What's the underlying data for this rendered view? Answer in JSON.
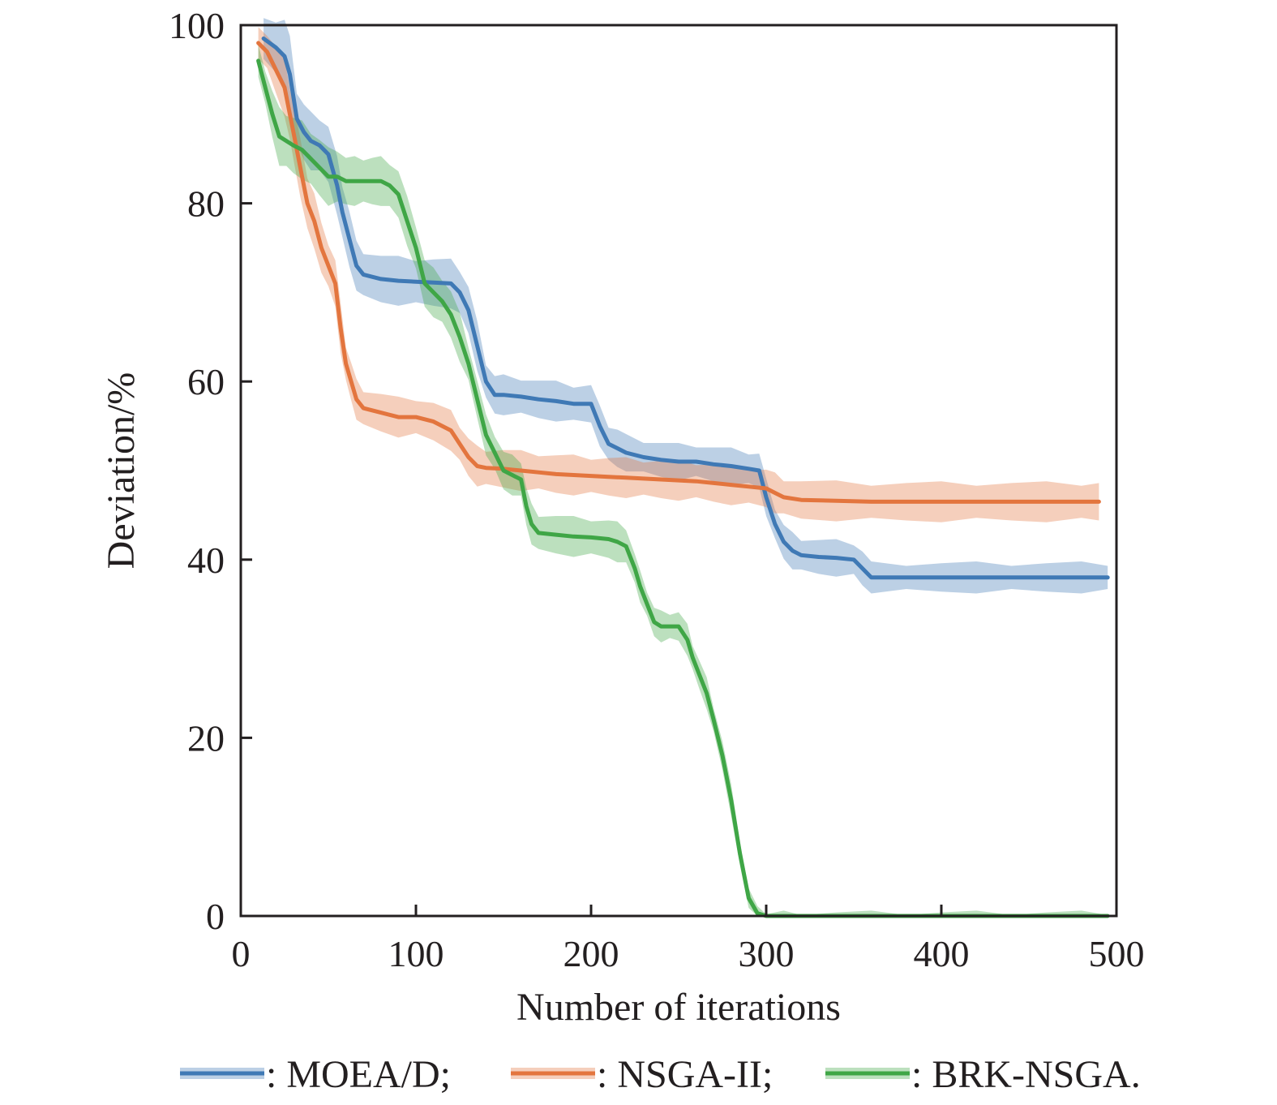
{
  "chart_data": {
    "type": "line",
    "xlabel": "Number of iterations",
    "ylabel": "Deviation/%",
    "xlim": [
      0,
      500
    ],
    "ylim": [
      0,
      100
    ],
    "xticks": [
      0,
      100,
      200,
      300,
      400,
      500
    ],
    "yticks": [
      0,
      20,
      40,
      60,
      80,
      100
    ],
    "x_tick_labels": [
      "0",
      "100",
      "200",
      "300",
      "400",
      "500"
    ],
    "y_tick_labels": [
      "0",
      "20",
      "40",
      "60",
      "80",
      "100"
    ],
    "grid": false,
    "legend_position": "bottom",
    "shaded_band": true,
    "series": [
      {
        "name": ": MOEA/D;",
        "color": "#3f79b5",
        "x": [
          13,
          20,
          25,
          28,
          32,
          36,
          40,
          45,
          50,
          55,
          58,
          62,
          66,
          70,
          80,
          90,
          100,
          110,
          120,
          125,
          130,
          135,
          140,
          145,
          150,
          160,
          170,
          180,
          190,
          200,
          205,
          210,
          215,
          220,
          230,
          240,
          250,
          260,
          270,
          280,
          290,
          296,
          300,
          305,
          310,
          315,
          320,
          330,
          340,
          350,
          355,
          360,
          380,
          400,
          420,
          440,
          460,
          480,
          495
        ],
        "y": [
          98.5,
          97.5,
          96.5,
          94.5,
          89.5,
          88,
          87,
          86.5,
          85.5,
          82,
          79,
          76,
          73,
          72,
          71.5,
          71.3,
          71.2,
          71.1,
          71,
          70,
          68,
          64,
          60,
          58.5,
          58.5,
          58.3,
          58,
          57.8,
          57.5,
          57.5,
          55,
          53,
          52.5,
          52,
          51.5,
          51.2,
          51,
          51,
          50.7,
          50.5,
          50.2,
          50,
          47,
          44,
          42,
          41,
          40.5,
          40.3,
          40.2,
          40,
          39,
          38,
          38,
          38,
          38,
          38,
          38,
          38,
          38
        ],
        "band_halfwidth": [
          2,
          3,
          4,
          4,
          3,
          3,
          3,
          3,
          3,
          3,
          3,
          3,
          2.5,
          2.5,
          2.5,
          2.5,
          2.5,
          2.5,
          2.5,
          2.5,
          2.5,
          2.5,
          2,
          2,
          2,
          2,
          2,
          2,
          2,
          2,
          2,
          2,
          2,
          1.8,
          1.8,
          1.8,
          1.8,
          1.8,
          1.8,
          1.8,
          1.8,
          1.8,
          1.8,
          1.8,
          1.8,
          1.8,
          1.8,
          1.8,
          1.8,
          1.8,
          1.8,
          1.5,
          1.5,
          1.5,
          1.5,
          1.5,
          1.5,
          1.5,
          1.5
        ]
      },
      {
        "name": ": NSGA-II;",
        "color": "#e3753e",
        "x": [
          10,
          15,
          20,
          25,
          28,
          31,
          34,
          38,
          42,
          46,
          50,
          54,
          57,
          60,
          63,
          66,
          70,
          80,
          90,
          100,
          110,
          120,
          125,
          130,
          135,
          140,
          150,
          160,
          170,
          180,
          190,
          200,
          210,
          220,
          230,
          240,
          250,
          260,
          270,
          280,
          290,
          300,
          305,
          310,
          320,
          340,
          360,
          380,
          400,
          420,
          440,
          460,
          480,
          490
        ],
        "y": [
          98,
          97,
          95,
          93,
          90,
          87,
          84,
          80,
          78,
          75,
          73,
          71,
          66,
          62,
          60,
          58,
          57,
          56.5,
          56,
          56,
          55.5,
          54.5,
          53,
          51.5,
          50.5,
          50.3,
          50.2,
          50,
          49.8,
          49.6,
          49.5,
          49.4,
          49.3,
          49.2,
          49.1,
          49,
          48.9,
          48.8,
          48.6,
          48.4,
          48.2,
          48,
          47.5,
          47,
          46.7,
          46.6,
          46.5,
          46.5,
          46.5,
          46.5,
          46.5,
          46.5,
          46.5,
          46.5
        ],
        "band_halfwidth": [
          1.5,
          2,
          2.5,
          3,
          3,
          3,
          3,
          3,
          3,
          2.5,
          2.5,
          2.5,
          2.5,
          2,
          2,
          2,
          2,
          2,
          2,
          2,
          2,
          2,
          2,
          2,
          2,
          2,
          2,
          2,
          2,
          2,
          2,
          2,
          2,
          2,
          2,
          2,
          2,
          2,
          2,
          2,
          2,
          2,
          2,
          2,
          2,
          2,
          2,
          2,
          2,
          2,
          2,
          2,
          2,
          2
        ]
      },
      {
        "name": ": BRK-NSGA.",
        "color": "#3fa646",
        "x": [
          10,
          14,
          18,
          22,
          26,
          30,
          35,
          40,
          45,
          50,
          55,
          60,
          65,
          70,
          75,
          80,
          85,
          90,
          95,
          100,
          105,
          110,
          115,
          120,
          125,
          130,
          135,
          140,
          145,
          150,
          155,
          160,
          163,
          166,
          170,
          180,
          190,
          200,
          210,
          215,
          220,
          225,
          228,
          232,
          236,
          240,
          245,
          250,
          255,
          258,
          262,
          266,
          270,
          275,
          280,
          285,
          290,
          295,
          300,
          305,
          310,
          320,
          340,
          360,
          380,
          400,
          420,
          440,
          460,
          480,
          495
        ],
        "y": [
          96,
          93,
          90,
          87.5,
          87,
          86.5,
          86,
          85,
          84,
          83,
          83,
          82.5,
          82.5,
          82.5,
          82.5,
          82.5,
          82,
          81,
          78,
          75,
          71,
          70,
          69,
          67.5,
          65,
          62,
          58,
          54,
          52,
          50,
          49.5,
          49,
          46,
          44,
          43,
          42.8,
          42.6,
          42.5,
          42.3,
          42,
          41.5,
          39,
          37,
          35,
          33,
          32.5,
          32.5,
          32.5,
          31,
          29,
          27,
          25,
          22,
          18,
          13,
          7,
          2,
          0.3,
          0,
          0,
          0,
          0,
          0,
          0,
          0,
          0,
          0,
          0,
          0,
          0,
          0
        ],
        "band_halfwidth": [
          1.5,
          2,
          2.5,
          3,
          3,
          3,
          3,
          3,
          3,
          3,
          3,
          2.5,
          2.5,
          2.5,
          2.5,
          2.5,
          2.5,
          2.5,
          2.5,
          2.5,
          2.5,
          2.5,
          2.5,
          2.5,
          2.5,
          2,
          2,
          2,
          2,
          2,
          2,
          2,
          2,
          2,
          2,
          2,
          2,
          2,
          2,
          2,
          2,
          1.5,
          1.5,
          1.5,
          1.5,
          1.5,
          1.5,
          1.5,
          1.5,
          1.5,
          1.5,
          1.5,
          1.5,
          1.5,
          1.5,
          1.5,
          1,
          0.5,
          0.4,
          0.3,
          0.3,
          0.3,
          0.3,
          0.3,
          0.3,
          0.3,
          0.3,
          0.3,
          0.3,
          0.3,
          0.3
        ]
      }
    ]
  }
}
